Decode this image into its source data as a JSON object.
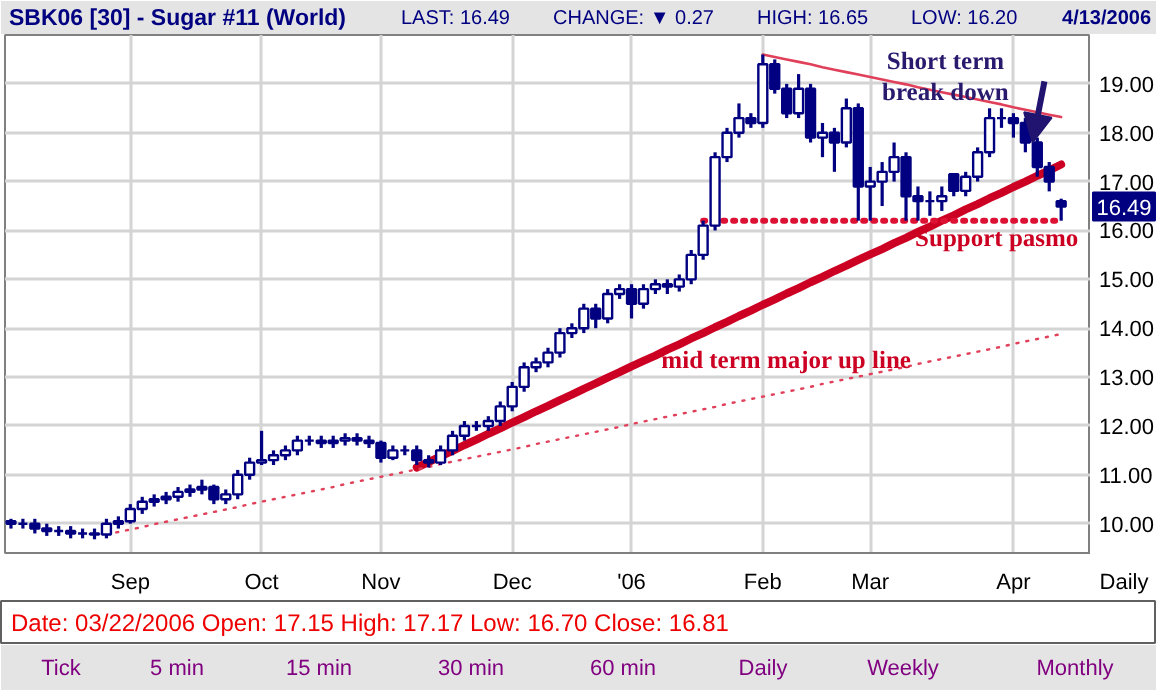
{
  "chart_data": {
    "type": "candlestick",
    "title": "SBK06 [30] - Sugar #11 (World)",
    "color": "#000080",
    "categories": [
      null,
      null,
      null,
      null,
      null,
      null,
      null,
      null,
      null,
      null,
      "Sep",
      null,
      null,
      null,
      null,
      null,
      null,
      null,
      null,
      null,
      null,
      "Oct",
      null,
      null,
      null,
      null,
      null,
      null,
      null,
      null,
      null,
      "Nov",
      null,
      null,
      null,
      null,
      null,
      null,
      null,
      null,
      null,
      null,
      "Dec",
      null,
      null,
      null,
      null,
      null,
      null,
      null,
      null,
      null,
      "'06",
      null,
      null,
      null,
      null,
      null,
      null,
      null,
      null,
      null,
      null,
      "Feb",
      null,
      null,
      null,
      null,
      null,
      null,
      null,
      null,
      "Mar",
      null,
      null,
      null,
      null,
      null,
      null,
      null,
      null,
      null,
      null,
      null,
      "Apr",
      null,
      null,
      null,
      null
    ],
    "ohlc": [
      [
        10.05,
        10.1,
        9.9,
        10.0
      ],
      [
        10.0,
        10.1,
        9.9,
        10.0
      ],
      [
        10.0,
        10.1,
        9.8,
        9.9
      ],
      [
        9.9,
        10.0,
        9.75,
        9.85
      ],
      [
        9.85,
        9.95,
        9.75,
        9.85
      ],
      [
        9.85,
        9.95,
        9.7,
        9.8
      ],
      [
        9.8,
        9.9,
        9.7,
        9.8
      ],
      [
        9.8,
        9.9,
        9.68,
        9.78
      ],
      [
        9.78,
        10.1,
        9.7,
        10.0
      ],
      [
        10.0,
        10.15,
        9.9,
        10.05
      ],
      [
        10.05,
        10.4,
        10.0,
        10.3
      ],
      [
        10.3,
        10.55,
        10.2,
        10.45
      ],
      [
        10.45,
        10.6,
        10.35,
        10.5
      ],
      [
        10.5,
        10.65,
        10.4,
        10.55
      ],
      [
        10.55,
        10.75,
        10.45,
        10.65
      ],
      [
        10.65,
        10.8,
        10.55,
        10.7
      ],
      [
        10.7,
        10.9,
        10.6,
        10.75
      ],
      [
        10.75,
        10.8,
        10.4,
        10.5
      ],
      [
        10.5,
        10.7,
        10.4,
        10.6
      ],
      [
        10.6,
        11.1,
        10.5,
        11.0
      ],
      [
        11.0,
        11.35,
        10.9,
        11.25
      ],
      [
        11.25,
        11.9,
        11.2,
        11.3
      ],
      [
        11.3,
        11.5,
        11.2,
        11.4
      ],
      [
        11.4,
        11.6,
        11.3,
        11.5
      ],
      [
        11.5,
        11.8,
        11.4,
        11.7
      ],
      [
        11.7,
        11.8,
        11.6,
        11.7
      ],
      [
        11.7,
        11.8,
        11.55,
        11.65
      ],
      [
        11.65,
        11.8,
        11.55,
        11.7
      ],
      [
        11.7,
        11.85,
        11.6,
        11.75
      ],
      [
        11.75,
        11.85,
        11.6,
        11.7
      ],
      [
        11.7,
        11.8,
        11.55,
        11.65
      ],
      [
        11.65,
        11.7,
        11.25,
        11.35
      ],
      [
        11.35,
        11.6,
        11.3,
        11.5
      ],
      [
        11.5,
        11.6,
        11.4,
        11.5
      ],
      [
        11.5,
        11.6,
        11.2,
        11.3
      ],
      [
        11.3,
        11.4,
        11.15,
        11.25
      ],
      [
        11.25,
        11.6,
        11.2,
        11.5
      ],
      [
        11.5,
        11.9,
        11.4,
        11.8
      ],
      [
        11.8,
        12.1,
        11.7,
        12.0
      ],
      [
        12.0,
        12.1,
        11.9,
        12.0
      ],
      [
        12.0,
        12.2,
        11.9,
        12.1
      ],
      [
        12.1,
        12.5,
        12.0,
        12.4
      ],
      [
        12.4,
        12.9,
        12.3,
        12.8
      ],
      [
        12.8,
        13.3,
        12.7,
        13.2
      ],
      [
        13.2,
        13.4,
        13.1,
        13.3
      ],
      [
        13.3,
        13.6,
        13.2,
        13.5
      ],
      [
        13.5,
        14.0,
        13.4,
        13.9
      ],
      [
        13.9,
        14.1,
        13.8,
        14.0
      ],
      [
        14.0,
        14.5,
        13.9,
        14.4
      ],
      [
        14.4,
        14.5,
        14.0,
        14.2
      ],
      [
        14.2,
        14.8,
        14.1,
        14.7
      ],
      [
        14.7,
        14.9,
        14.6,
        14.8
      ],
      [
        14.8,
        14.9,
        14.2,
        14.5
      ],
      [
        14.5,
        14.9,
        14.4,
        14.8
      ],
      [
        14.8,
        15.0,
        14.7,
        14.9
      ],
      [
        14.9,
        15.0,
        14.7,
        14.85
      ],
      [
        14.85,
        15.1,
        14.75,
        15.0
      ],
      [
        15.0,
        15.6,
        14.9,
        15.5
      ],
      [
        15.5,
        16.2,
        15.4,
        16.1
      ],
      [
        16.1,
        17.6,
        16.0,
        17.5
      ],
      [
        17.5,
        18.1,
        17.4,
        18.0
      ],
      [
        18.0,
        18.6,
        17.9,
        18.3
      ],
      [
        18.3,
        18.4,
        18.1,
        18.2
      ],
      [
        18.2,
        19.6,
        18.1,
        19.4
      ],
      [
        19.4,
        19.5,
        18.8,
        18.9
      ],
      [
        18.9,
        19.0,
        18.3,
        18.4
      ],
      [
        18.4,
        19.2,
        18.3,
        18.9
      ],
      [
        18.9,
        19.0,
        17.8,
        17.9
      ],
      [
        17.9,
        18.2,
        17.5,
        18.0
      ],
      [
        18.0,
        18.1,
        17.2,
        17.8
      ],
      [
        17.8,
        18.7,
        17.7,
        18.5
      ],
      [
        18.5,
        18.6,
        16.2,
        16.9
      ],
      [
        16.9,
        17.3,
        16.2,
        17.0
      ],
      [
        17.0,
        17.4,
        16.5,
        17.2
      ],
      [
        17.2,
        17.8,
        17.0,
        17.5
      ],
      [
        17.5,
        17.6,
        16.2,
        16.7
      ],
      [
        16.7,
        16.9,
        16.2,
        16.6
      ],
      [
        16.6,
        16.8,
        16.3,
        16.6
      ],
      [
        16.6,
        16.9,
        16.4,
        16.7
      ],
      [
        17.15,
        17.17,
        16.7,
        16.81
      ],
      [
        16.81,
        17.2,
        16.7,
        17.1
      ],
      [
        17.1,
        17.7,
        17.0,
        17.6
      ],
      [
        17.6,
        18.5,
        17.5,
        18.3
      ],
      [
        18.3,
        18.5,
        18.1,
        18.3
      ],
      [
        18.3,
        18.4,
        17.9,
        18.2
      ],
      [
        18.2,
        18.3,
        17.6,
        17.8
      ],
      [
        17.8,
        17.9,
        17.1,
        17.3
      ],
      [
        17.3,
        17.4,
        16.8,
        17.0
      ],
      [
        16.6,
        16.65,
        16.2,
        16.49
      ]
    ],
    "series": [
      {
        "type": "line",
        "color": "#cc0022",
        "line_style": "solid",
        "values": [
          null,
          null,
          null,
          null,
          null,
          null,
          null,
          null,
          null,
          null,
          null,
          null,
          null,
          null,
          null,
          null,
          null,
          null,
          null,
          null,
          null,
          null,
          null,
          null,
          null,
          null,
          null,
          null,
          null,
          null,
          null,
          null,
          null,
          null,
          11.15,
          11.26,
          11.38,
          11.49,
          11.61,
          11.72,
          11.84,
          11.95,
          12.07,
          12.18,
          12.3,
          12.41,
          12.53,
          12.64,
          12.76,
          12.87,
          12.99,
          13.1,
          13.22,
          13.33,
          13.44,
          13.56,
          13.67,
          13.79,
          13.9,
          14.02,
          14.13,
          14.25,
          14.36,
          14.48,
          14.59,
          14.71,
          14.82,
          14.94,
          15.05,
          15.17,
          15.28,
          15.4,
          15.51,
          15.62,
          15.74,
          15.85,
          15.97,
          16.08,
          16.2,
          16.31,
          16.43,
          16.54,
          16.66,
          16.77,
          16.89,
          17.0,
          17.12,
          17.23,
          17.35
        ]
      },
      {
        "type": "line",
        "color": "#e0405a",
        "line_style": "dotted",
        "values": [
          null,
          null,
          null,
          null,
          null,
          null,
          null,
          null,
          9.78,
          9.83,
          9.88,
          9.93,
          9.99,
          10.04,
          10.09,
          10.14,
          10.19,
          10.24,
          10.29,
          10.34,
          10.4,
          10.45,
          10.5,
          10.55,
          10.6,
          10.65,
          10.7,
          10.75,
          10.81,
          10.86,
          10.91,
          10.96,
          11.01,
          11.06,
          11.11,
          11.16,
          11.22,
          11.27,
          11.32,
          11.37,
          11.42,
          11.47,
          11.52,
          11.57,
          11.63,
          11.68,
          11.73,
          11.78,
          11.83,
          11.88,
          11.93,
          11.98,
          12.04,
          12.09,
          12.14,
          12.19,
          12.24,
          12.29,
          12.34,
          12.39,
          12.45,
          12.5,
          12.55,
          12.6,
          12.65,
          12.7,
          12.75,
          12.8,
          12.86,
          12.91,
          12.96,
          13.01,
          13.06,
          13.11,
          13.16,
          13.21,
          13.27,
          13.32,
          13.37,
          13.42,
          13.47,
          13.52,
          13.57,
          13.62,
          13.68,
          13.73,
          13.78,
          13.83,
          13.88
        ]
      },
      {
        "type": "line",
        "color": "#e0405a",
        "line_style": "solid",
        "values": [
          null,
          null,
          null,
          null,
          null,
          null,
          null,
          null,
          null,
          null,
          null,
          null,
          null,
          null,
          null,
          null,
          null,
          null,
          null,
          null,
          null,
          null,
          null,
          null,
          null,
          null,
          null,
          null,
          null,
          null,
          null,
          null,
          null,
          null,
          null,
          null,
          null,
          null,
          null,
          null,
          null,
          null,
          null,
          null,
          null,
          null,
          null,
          null,
          null,
          null,
          null,
          null,
          null,
          null,
          null,
          null,
          null,
          null,
          null,
          null,
          null,
          null,
          null,
          19.6,
          19.55,
          19.5,
          19.45,
          19.4,
          19.34,
          19.29,
          19.24,
          19.19,
          19.14,
          19.09,
          19.04,
          18.99,
          18.93,
          18.88,
          18.83,
          18.78,
          18.73,
          18.68,
          18.63,
          18.58,
          18.52,
          18.47,
          18.42,
          18.37,
          18.32
        ]
      },
      {
        "type": "line",
        "color": "#dd1133",
        "line_style": "dotted",
        "values": [
          null,
          null,
          null,
          null,
          null,
          null,
          null,
          null,
          null,
          null,
          null,
          null,
          null,
          null,
          null,
          null,
          null,
          null,
          null,
          null,
          null,
          null,
          null,
          null,
          null,
          null,
          null,
          null,
          null,
          null,
          null,
          null,
          null,
          null,
          null,
          null,
          null,
          null,
          null,
          null,
          null,
          null,
          null,
          null,
          null,
          null,
          null,
          null,
          null,
          null,
          null,
          null,
          null,
          null,
          null,
          null,
          null,
          null,
          16.2,
          16.2,
          16.2,
          16.2,
          16.2,
          16.2,
          16.2,
          16.2,
          16.2,
          16.2,
          16.2,
          16.2,
          16.2,
          16.2,
          16.2,
          16.2,
          16.2,
          16.2,
          16.2,
          16.2,
          16.2,
          16.2,
          16.2,
          16.2,
          16.2,
          16.2,
          16.2,
          16.2,
          16.2,
          16.2,
          16.2
        ]
      }
    ],
    "ylim": [
      9.4,
      20.0
    ],
    "yticks": [
      {
        "value": 10,
        "label": "10.00"
      },
      {
        "value": 11,
        "label": "11.00"
      },
      {
        "value": 12,
        "label": "12.00"
      },
      {
        "value": 13,
        "label": "13.00"
      },
      {
        "value": 14,
        "label": "14.00"
      },
      {
        "value": 15,
        "label": "15.00"
      },
      {
        "value": 16,
        "label": "16.00"
      },
      {
        "value": 17,
        "label": "17.00"
      },
      {
        "value": 18,
        "label": "18.00"
      },
      {
        "value": 19,
        "label": "19.00"
      }
    ],
    "grid": true,
    "annotations": [
      "LAST: 16.49",
      "CHANGE: ▼ 0.27",
      "HIGH: 16.65",
      "LOW: 16.20",
      "4/13/2006",
      "Short term\nbreak down",
      "Support pasmo",
      "mid term major up line",
      {
        "text": "16.49",
        "y": 16.49
      },
      "Daily",
      "Date: 03/22/2006  Open: 17.15  High: 17.17  Low: 16.70  Close: 16.81",
      "Tick",
      "5 min",
      "15 min",
      "30 min",
      "60 min",
      "Daily",
      "Weekly",
      "Monthly"
    ]
  }
}
